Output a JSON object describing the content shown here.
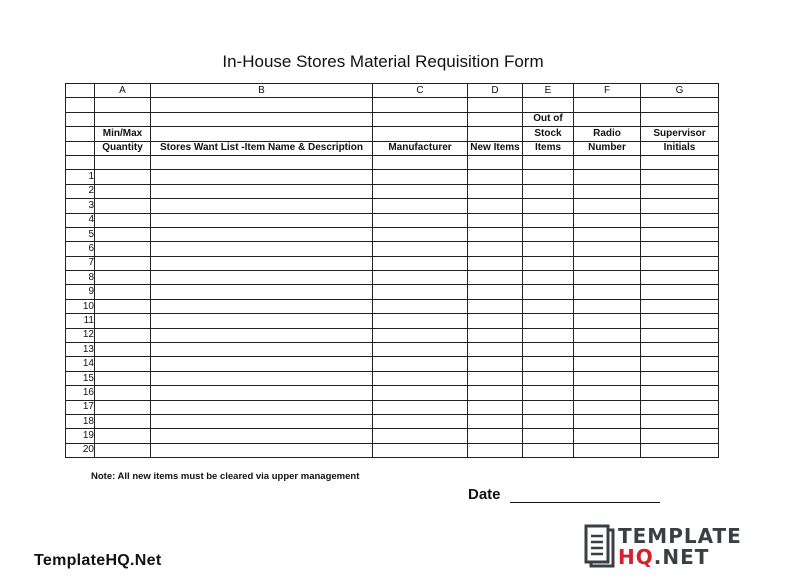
{
  "form": {
    "title": "In-House Stores Material Requisition Form",
    "column_letters": [
      "A",
      "B",
      "C",
      "D",
      "E",
      "F",
      "G"
    ],
    "header_row_3": [
      "",
      "",
      "",
      "",
      "Out of",
      "",
      ""
    ],
    "header_row_4": [
      "Min/Max",
      "",
      "",
      "",
      "Stock",
      "Radio",
      "Supervisor"
    ],
    "header_row_5": [
      "Quantity",
      "Stores Want List -Item Name & Description",
      "Manufacturer",
      "New Items",
      "Items",
      "Number",
      "Initials"
    ],
    "row_numbers": [
      "1",
      "2",
      "3",
      "4",
      "5",
      "6",
      "7",
      "8",
      "9",
      "10",
      "11",
      "12",
      "13",
      "14",
      "15",
      "16",
      "17",
      "18",
      "19",
      "20"
    ],
    "note": "Note: All new items must be cleared via upper management",
    "date_label": "Date"
  },
  "watermark": {
    "text": "TemplateHQ.Net",
    "logo_line1": "TEMPLATE",
    "logo_line2_red": "HQ",
    "logo_line2_rest": ".NET",
    "logo_colors": {
      "dark": "#3a3f44",
      "red": "#d3202a"
    }
  }
}
